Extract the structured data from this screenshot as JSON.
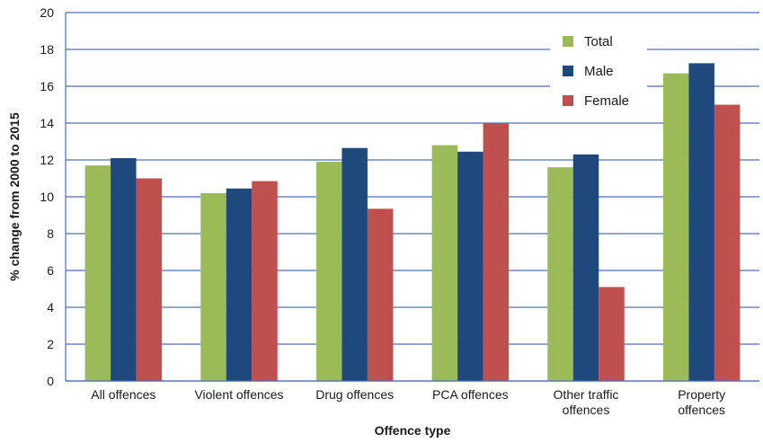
{
  "chart_data": {
    "type": "bar",
    "title": "",
    "xlabel": "Offence type",
    "ylabel": "% change from 2000 to 2015",
    "ylim": [
      0,
      20
    ],
    "yticks": [
      0,
      2,
      4,
      6,
      8,
      10,
      12,
      14,
      16,
      18,
      20
    ],
    "grid": true,
    "legend_position": "top-right",
    "categories": [
      [
        "All offences"
      ],
      [
        "Violent offences"
      ],
      [
        "Drug offences"
      ],
      [
        "PCA offences"
      ],
      [
        "Other traffic",
        "offences"
      ],
      [
        "Property",
        "offences"
      ]
    ],
    "series": [
      {
        "name": "Total",
        "color": "#9bbb59",
        "values": [
          11.7,
          10.2,
          11.9,
          12.8,
          11.6,
          16.7
        ]
      },
      {
        "name": "Male",
        "color": "#1f497d",
        "values": [
          12.1,
          10.45,
          12.65,
          12.45,
          12.3,
          17.25
        ]
      },
      {
        "name": "Female",
        "color": "#c0504d",
        "values": [
          11.0,
          10.85,
          9.35,
          14.0,
          5.1,
          15.0
        ]
      }
    ],
    "gridline_color": "#4f6fb5"
  }
}
